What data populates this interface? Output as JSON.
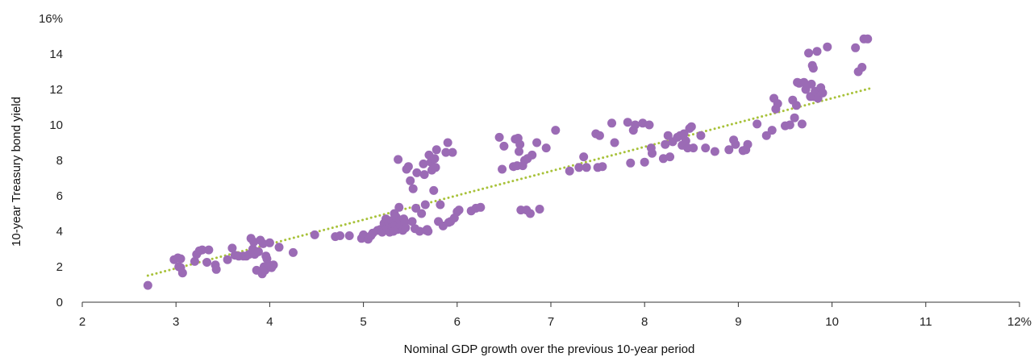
{
  "chart_data": {
    "type": "scatter",
    "title": "",
    "xlabel": "Nominal GDP growth over the previous 10-year period",
    "ylabel": "10-year Treasury bond yield",
    "xlim": [
      2,
      12
    ],
    "ylim": [
      0,
      16
    ],
    "x_ticks": [
      2,
      3,
      4,
      5,
      6,
      7,
      8,
      9,
      10,
      11,
      12
    ],
    "y_ticks": [
      0,
      2,
      4,
      6,
      8,
      10,
      12,
      14,
      16
    ],
    "x_tick_labels": [
      "2",
      "3",
      "4",
      "5",
      "6",
      "7",
      "8",
      "9",
      "10",
      "11",
      "12%"
    ],
    "y_tick_labels": [
      "0",
      "2",
      "4",
      "6",
      "8",
      "10",
      "12",
      "14",
      "16%"
    ],
    "grid": false,
    "legend": "none",
    "colors": {
      "points": "#9b6bb5",
      "trendline": "#a8c23a",
      "axis": "#333333"
    },
    "trendline": {
      "x": [
        2.7,
        10.4
      ],
      "y": [
        1.5,
        12.05
      ],
      "style": "dotted"
    },
    "series": [
      {
        "points": [
          [
            2.7,
            0.95
          ],
          [
            2.98,
            2.4
          ],
          [
            3.02,
            2.5
          ],
          [
            3.05,
            2.45
          ],
          [
            3.03,
            2.0
          ],
          [
            3.05,
            1.95
          ],
          [
            3.07,
            1.65
          ],
          [
            3.2,
            2.3
          ],
          [
            3.22,
            2.7
          ],
          [
            3.25,
            2.9
          ],
          [
            3.28,
            2.95
          ],
          [
            3.33,
            2.25
          ],
          [
            3.35,
            2.95
          ],
          [
            3.42,
            2.1
          ],
          [
            3.43,
            1.85
          ],
          [
            3.55,
            2.4
          ],
          [
            3.6,
            3.05
          ],
          [
            3.63,
            2.65
          ],
          [
            3.67,
            2.6
          ],
          [
            3.72,
            2.6
          ],
          [
            3.75,
            2.6
          ],
          [
            3.78,
            2.7
          ],
          [
            3.8,
            3.6
          ],
          [
            3.82,
            3.0
          ],
          [
            3.83,
            3.4
          ],
          [
            3.84,
            2.7
          ],
          [
            3.86,
            1.8
          ],
          [
            3.88,
            2.85
          ],
          [
            3.9,
            3.5
          ],
          [
            3.92,
            1.6
          ],
          [
            3.93,
            3.3
          ],
          [
            3.94,
            2.0
          ],
          [
            3.95,
            1.8
          ],
          [
            3.96,
            2.6
          ],
          [
            3.97,
            2.45
          ],
          [
            3.99,
            2.1
          ],
          [
            4.0,
            3.35
          ],
          [
            4.02,
            1.95
          ],
          [
            4.04,
            2.1
          ],
          [
            4.1,
            3.1
          ],
          [
            4.25,
            2.8
          ],
          [
            4.48,
            3.8
          ],
          [
            4.7,
            3.7
          ],
          [
            4.75,
            3.75
          ],
          [
            4.85,
            3.75
          ],
          [
            4.98,
            3.6
          ],
          [
            5.0,
            3.8
          ],
          [
            5.02,
            3.65
          ],
          [
            5.05,
            3.55
          ],
          [
            5.08,
            3.75
          ],
          [
            5.1,
            3.9
          ],
          [
            5.15,
            4.05
          ],
          [
            5.18,
            4.1
          ],
          [
            5.2,
            3.95
          ],
          [
            5.22,
            4.45
          ],
          [
            5.24,
            4.7
          ],
          [
            5.25,
            4.2
          ],
          [
            5.27,
            4.5
          ],
          [
            5.28,
            3.95
          ],
          [
            5.3,
            4.6
          ],
          [
            5.31,
            4.25
          ],
          [
            5.32,
            4.0
          ],
          [
            5.33,
            5.0
          ],
          [
            5.34,
            4.35
          ],
          [
            5.35,
            4.8
          ],
          [
            5.36,
            4.1
          ],
          [
            5.37,
            8.05
          ],
          [
            5.38,
            5.35
          ],
          [
            5.39,
            4.6
          ],
          [
            5.4,
            4.3
          ],
          [
            5.42,
            4.05
          ],
          [
            5.43,
            4.7
          ],
          [
            5.44,
            4.5
          ],
          [
            5.45,
            4.2
          ],
          [
            5.46,
            7.5
          ],
          [
            5.48,
            7.65
          ],
          [
            5.5,
            6.85
          ],
          [
            5.52,
            4.55
          ],
          [
            5.53,
            6.4
          ],
          [
            5.55,
            4.15
          ],
          [
            5.56,
            5.3
          ],
          [
            5.57,
            7.3
          ],
          [
            5.6,
            4.0
          ],
          [
            5.62,
            5.0
          ],
          [
            5.64,
            7.8
          ],
          [
            5.65,
            7.2
          ],
          [
            5.66,
            5.5
          ],
          [
            5.67,
            4.05
          ],
          [
            5.68,
            4.1
          ],
          [
            5.69,
            4.0
          ],
          [
            5.7,
            8.3
          ],
          [
            5.72,
            7.9
          ],
          [
            5.73,
            7.45
          ],
          [
            5.75,
            6.3
          ],
          [
            5.76,
            8.1
          ],
          [
            5.77,
            7.6
          ],
          [
            5.78,
            8.6
          ],
          [
            5.8,
            4.55
          ],
          [
            5.82,
            5.5
          ],
          [
            5.85,
            4.3
          ],
          [
            5.88,
            8.45
          ],
          [
            5.9,
            9.0
          ],
          [
            5.91,
            4.5
          ],
          [
            5.93,
            4.55
          ],
          [
            5.95,
            8.45
          ],
          [
            5.97,
            4.75
          ],
          [
            6.0,
            5.1
          ],
          [
            6.02,
            5.2
          ],
          [
            6.15,
            5.15
          ],
          [
            6.2,
            5.3
          ],
          [
            6.25,
            5.35
          ],
          [
            6.45,
            9.3
          ],
          [
            6.48,
            7.5
          ],
          [
            6.5,
            8.8
          ],
          [
            6.6,
            7.65
          ],
          [
            6.62,
            9.2
          ],
          [
            6.64,
            7.7
          ],
          [
            6.65,
            9.25
          ],
          [
            6.66,
            8.5
          ],
          [
            6.67,
            8.9
          ],
          [
            6.68,
            5.2
          ],
          [
            6.7,
            7.7
          ],
          [
            6.72,
            8.0
          ],
          [
            6.74,
            5.2
          ],
          [
            6.75,
            8.1
          ],
          [
            6.78,
            5.0
          ],
          [
            6.8,
            8.3
          ],
          [
            6.85,
            9.0
          ],
          [
            6.88,
            5.25
          ],
          [
            6.95,
            8.7
          ],
          [
            7.05,
            9.7
          ],
          [
            7.2,
            7.4
          ],
          [
            7.3,
            7.6
          ],
          [
            7.35,
            8.2
          ],
          [
            7.38,
            7.6
          ],
          [
            7.48,
            9.5
          ],
          [
            7.5,
            7.6
          ],
          [
            7.52,
            9.4
          ],
          [
            7.55,
            7.65
          ],
          [
            7.65,
            10.1
          ],
          [
            7.68,
            9.0
          ],
          [
            7.82,
            10.15
          ],
          [
            7.85,
            7.85
          ],
          [
            7.88,
            9.7
          ],
          [
            7.9,
            10.0
          ],
          [
            7.98,
            10.1
          ],
          [
            8.0,
            7.9
          ],
          [
            8.05,
            10.0
          ],
          [
            8.07,
            8.7
          ],
          [
            8.08,
            8.4
          ],
          [
            8.2,
            8.1
          ],
          [
            8.22,
            8.9
          ],
          [
            8.25,
            9.4
          ],
          [
            8.27,
            8.2
          ],
          [
            8.3,
            9.05
          ],
          [
            8.35,
            9.3
          ],
          [
            8.38,
            9.4
          ],
          [
            8.4,
            8.85
          ],
          [
            8.42,
            9.5
          ],
          [
            8.44,
            9.1
          ],
          [
            8.46,
            8.7
          ],
          [
            8.48,
            9.8
          ],
          [
            8.5,
            9.9
          ],
          [
            8.52,
            8.7
          ],
          [
            8.6,
            9.4
          ],
          [
            8.65,
            8.7
          ],
          [
            8.75,
            8.5
          ],
          [
            8.9,
            8.6
          ],
          [
            8.95,
            9.15
          ],
          [
            8.97,
            8.9
          ],
          [
            9.05,
            8.55
          ],
          [
            9.08,
            8.6
          ],
          [
            9.1,
            8.9
          ],
          [
            9.2,
            10.05
          ],
          [
            9.3,
            9.4
          ],
          [
            9.36,
            9.7
          ],
          [
            9.38,
            11.5
          ],
          [
            9.4,
            10.9
          ],
          [
            9.42,
            11.2
          ],
          [
            9.5,
            9.95
          ],
          [
            9.55,
            10.0
          ],
          [
            9.58,
            11.4
          ],
          [
            9.6,
            10.4
          ],
          [
            9.62,
            11.1
          ],
          [
            9.63,
            12.4
          ],
          [
            9.65,
            12.35
          ],
          [
            9.68,
            10.05
          ],
          [
            9.7,
            12.4
          ],
          [
            9.72,
            12.0
          ],
          [
            9.75,
            14.05
          ],
          [
            9.77,
            11.6
          ],
          [
            9.78,
            12.3
          ],
          [
            9.79,
            13.35
          ],
          [
            9.8,
            13.2
          ],
          [
            9.81,
            11.6
          ],
          [
            9.82,
            11.9
          ],
          [
            9.84,
            14.15
          ],
          [
            9.85,
            11.5
          ],
          [
            9.88,
            12.1
          ],
          [
            9.9,
            11.8
          ],
          [
            9.95,
            14.4
          ],
          [
            10.25,
            14.35
          ],
          [
            10.28,
            13.0
          ],
          [
            10.32,
            13.25
          ],
          [
            10.34,
            14.85
          ],
          [
            10.38,
            14.85
          ]
        ]
      }
    ]
  }
}
